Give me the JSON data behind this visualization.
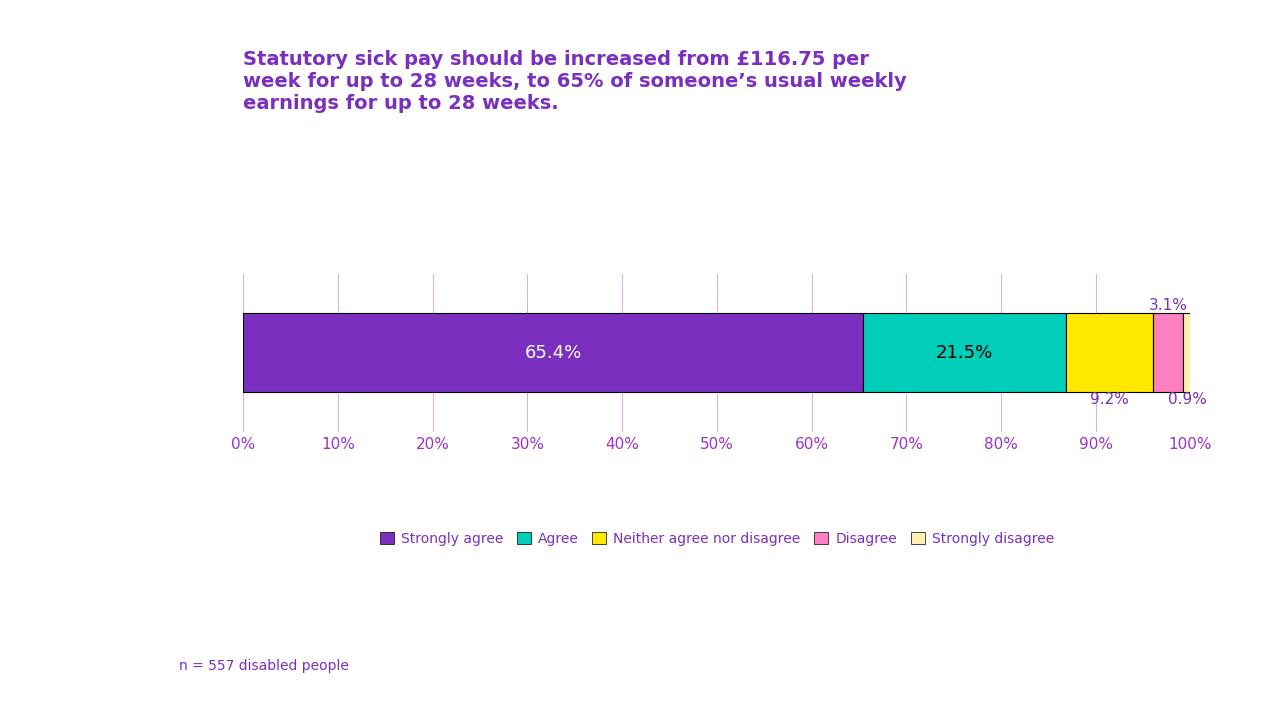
{
  "title": "Statutory sick pay should be increased from £116.75 per\nweek for up to 28 weeks, to 65% of someone’s usual weekly\nearnings for up to 28 weeks.",
  "categories": [
    "Strongly agree",
    "Agree",
    "Neither agree nor disagree",
    "Disagree",
    "Strongly disagree"
  ],
  "values": [
    65.4,
    21.5,
    9.2,
    3.1,
    0.9
  ],
  "colors": [
    "#7B2FBE",
    "#00CEB8",
    "#FFE800",
    "#FF80C0",
    "#FFF0B0"
  ],
  "title_color": "#7B2FBE",
  "axis_color": "#9933CC",
  "label_color": "#7B2FBE",
  "note": "n = 557 disabled people",
  "background_color": "#FFFFFF",
  "inside_label_colors": [
    "white",
    "black",
    "black",
    "black",
    "black"
  ]
}
